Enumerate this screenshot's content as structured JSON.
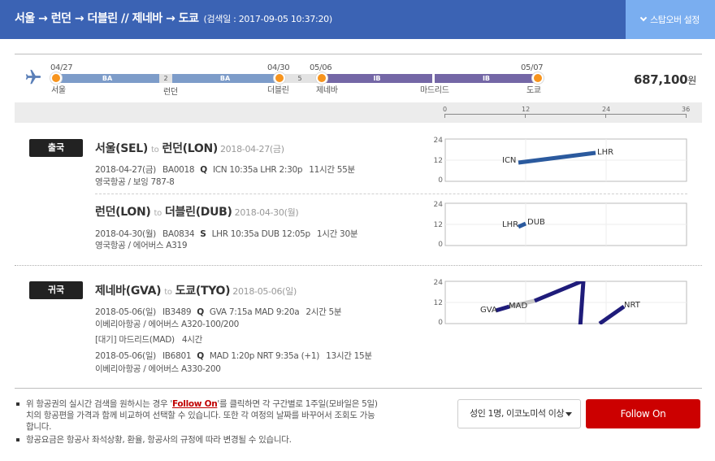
{
  "header": {
    "title": "서울 → 런던 → 더블린 // 제네바 → 도쿄",
    "search_date": "(검색일 : 2017-09-05 10:37:20)",
    "stopover_label": "스탑오버 설정"
  },
  "itinerary": {
    "icon": "airplane-icon",
    "price_value": "687,100",
    "price_unit": "원",
    "dates": [
      "04/27",
      "04/30",
      "05/06",
      "05/07"
    ],
    "cities": [
      "서울",
      "런던",
      "더블린",
      "제네바",
      "마드리드",
      "도쿄"
    ],
    "segments": [
      "BA",
      "BA",
      "IB",
      "IB"
    ],
    "stay_counts": [
      "2",
      "5"
    ],
    "timeline_ticks": [
      "0",
      "12",
      "24",
      "36"
    ]
  },
  "outbound": {
    "tag": "출국",
    "legs": [
      {
        "route_from": "서울(SEL)",
        "to": "to",
        "route_to": "런던(LON)",
        "route_date": "2018-04-27(금)",
        "date": "2018-04-27(금)",
        "flight": "BA0018",
        "class": "Q",
        "schedule": "ICN 10:35a LHR 2:30p",
        "duration": "11시간 55분",
        "airline": "영국항공 / 보잉 787-8",
        "chart": {
          "from": "ICN",
          "to": "LHR"
        }
      },
      {
        "route_from": "런던(LON)",
        "to": "to",
        "route_to": "더블린(DUB)",
        "route_date": "2018-04-30(월)",
        "date": "2018-04-30(월)",
        "flight": "BA0834",
        "class": "S",
        "schedule": "LHR 10:35a DUB 12:05p",
        "duration": "1시간 30분",
        "airline": "영국항공 / 에어버스 A319",
        "chart": {
          "from": "LHR",
          "to": "DUB"
        }
      }
    ]
  },
  "return": {
    "tag": "귀국",
    "route_from": "제네바(GVA)",
    "to": "to",
    "route_to": "도쿄(TYO)",
    "route_date": "2018-05-06(일)",
    "legs": [
      {
        "date": "2018-05-06(일)",
        "flight": "IB3489",
        "class": "Q",
        "schedule": "GVA 7:15a MAD 9:20a",
        "duration": "2시간 5분",
        "airline": "이베리아항공 / 에어버스 A320-100/200"
      },
      {
        "date": "2018-05-06(일)",
        "flight": "IB6801",
        "class": "Q",
        "schedule": "MAD 1:20p NRT 9:35a (+1)",
        "duration": "13시간 15분",
        "airline": "이베리아항공 / 에어버스 A330-200"
      }
    ],
    "layover": "[대기] 마드리드(MAD)   4시간",
    "chart": {
      "a": "GVA",
      "b": "MAD",
      "c": "NRT"
    }
  },
  "mini_chart_ticks": [
    "24",
    "12",
    "0"
  ],
  "notes": {
    "line1_pre": "위 항공권의 실시간 검색을 원하시는 경우 '",
    "line1_link": "Follow On",
    "line1_post": "'를 클릭하면 각 구간별로 1주일(모바일은 5일)치의 항공편을 가격과 함께 비교하여 선택할 수 있습니다. 또한 각 여정의 날짜를 바꾸어서 조회도 가능합니다.",
    "line2": "항공요금은 항공사 좌석상황, 환율, 항공사의 규정에 따라 변경될 수 있습니다."
  },
  "passenger_select": "성인 1명, 이코노미석 이상",
  "follow_button": "Follow On",
  "colors": {
    "header": "#3b63b4",
    "stopover": "#7aaef0",
    "ba": "#7d9cc9",
    "ib": "#7467a6",
    "outbound_line": "#2b5a9e",
    "return_line": "#1f1c7a",
    "dot": "#f7941d",
    "follow": "#cc0000"
  }
}
